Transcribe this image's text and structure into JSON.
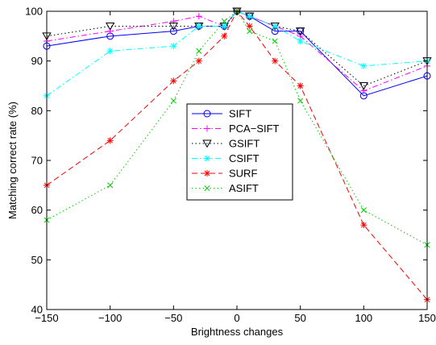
{
  "chart_data": {
    "type": "line",
    "title": "",
    "xlabel": "Brightness changes",
    "ylabel": "Matching correct rate (%)",
    "xlim": [
      -150,
      150
    ],
    "ylim": [
      40,
      100
    ],
    "xticks": [
      -150,
      -100,
      -50,
      0,
      50,
      100,
      150
    ],
    "yticks": [
      40,
      50,
      60,
      70,
      80,
      90,
      100
    ],
    "x": [
      -150,
      -100,
      -50,
      -30,
      -10,
      0,
      10,
      30,
      50,
      100,
      150
    ],
    "grid": false,
    "legend_position": "center",
    "series": [
      {
        "name": "SIFT",
        "color": "#0000ff",
        "dash": "solid",
        "marker": "circle",
        "values": [
          93,
          95,
          96,
          97,
          97,
          100,
          99,
          96,
          96,
          83,
          87
        ]
      },
      {
        "name": "PCA−SIFT",
        "color": "#ff00ff",
        "dash": "dashdot",
        "marker": "plus",
        "values": [
          94,
          96,
          98,
          99,
          97,
          100,
          99,
          97,
          95,
          84,
          89
        ]
      },
      {
        "name": "GSIFT",
        "color": "#000000",
        "dash": "dotted",
        "marker": "triangle-down",
        "values": [
          95,
          97,
          97,
          97,
          97,
          100,
          99,
          97,
          96,
          85,
          90
        ]
      },
      {
        "name": "CSIFT",
        "color": "#00ffff",
        "dash": "dashdot",
        "marker": "star",
        "values": [
          83,
          92,
          93,
          97,
          97,
          100,
          99,
          97,
          94,
          89,
          90
        ]
      },
      {
        "name": "SURF",
        "color": "#ff0000",
        "dash": "dashed",
        "marker": "star",
        "values": [
          65,
          74,
          86,
          90,
          95,
          100,
          97,
          90,
          85,
          57,
          42
        ]
      },
      {
        "name": "ASIFT",
        "color": "#00cc00",
        "dash": "dotted",
        "marker": "x",
        "values": [
          58,
          65,
          82,
          92,
          98,
          100,
          96,
          94,
          82,
          60,
          53
        ]
      }
    ]
  }
}
